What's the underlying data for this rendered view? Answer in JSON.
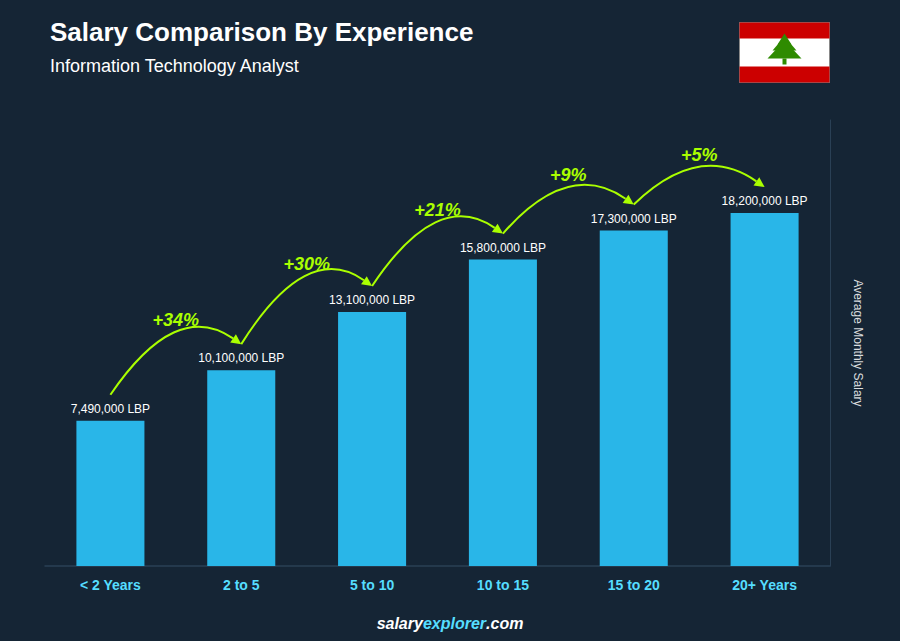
{
  "chart_data": {
    "type": "bar",
    "title": "Salary Comparison By Experience",
    "subtitle": "Information Technology Analyst",
    "categories": [
      "< 2 Years",
      "2 to 5",
      "5 to 10",
      "10 to 15",
      "15 to 20",
      "20+ Years"
    ],
    "values": [
      7490000,
      10100000,
      13100000,
      15800000,
      17300000,
      18200000
    ],
    "value_labels": [
      "7,490,000 LBP",
      "10,100,000 LBP",
      "13,100,000 LBP",
      "15,800,000 LBP",
      "17,300,000 LBP",
      "18,200,000 LBP"
    ],
    "data_labels": true,
    "color": "#29b6e8",
    "ylim": [
      0,
      23000000
    ],
    "ylabel": "Average Monthly Salary",
    "tick_labels": "x",
    "grid": false,
    "annotations": [
      {
        "text": "+34%",
        "from": "< 2 Years",
        "to": "2 to 5",
        "color": "#aaff00"
      },
      {
        "text": "+30%",
        "from": "2 to 5",
        "to": "5 to 10",
        "color": "#aaff00"
      },
      {
        "text": "+21%",
        "from": "5 to 10",
        "to": "10 to 15",
        "color": "#aaff00"
      },
      {
        "text": "+9%",
        "from": "10 to 15",
        "to": "15 to 20",
        "color": "#aaff00"
      },
      {
        "text": "+5%",
        "from": "15 to 20",
        "to": "20+ Years",
        "color": "#aaff00"
      }
    ],
    "footer": [
      "salary",
      "explorer",
      ".com"
    ]
  }
}
